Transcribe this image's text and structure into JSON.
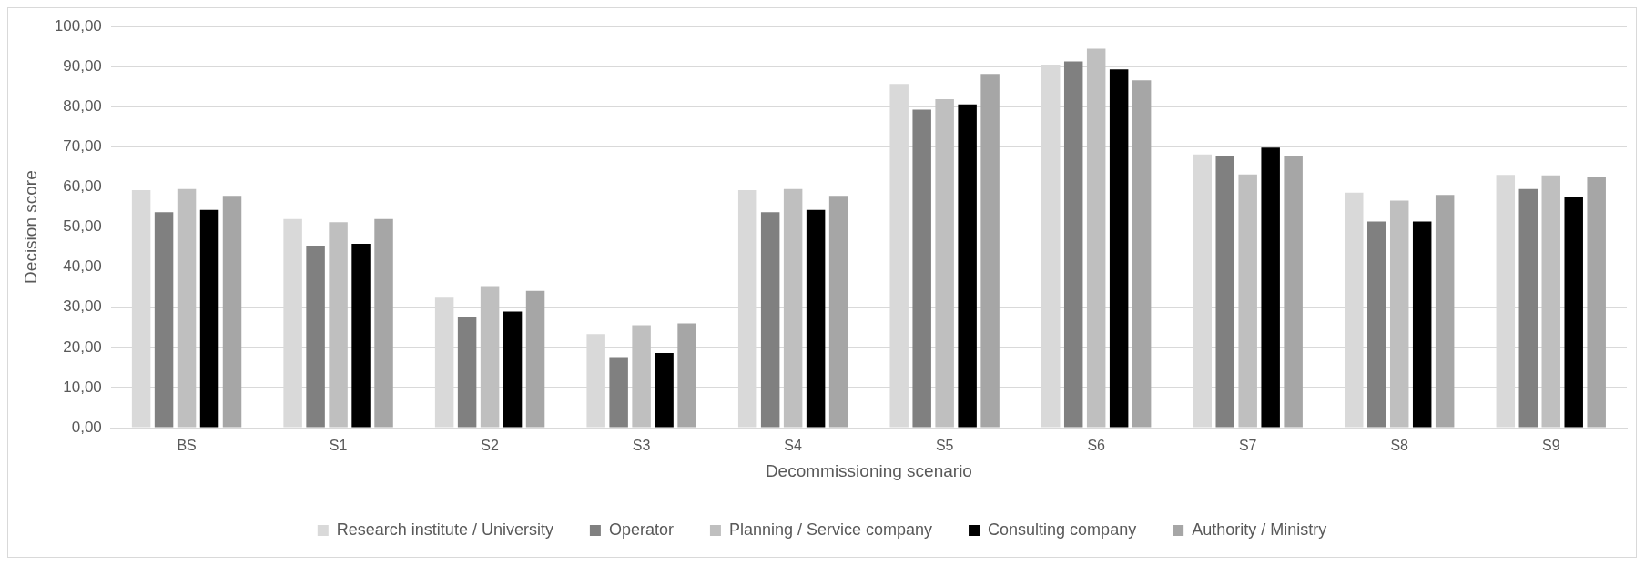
{
  "chart_data": {
    "type": "bar",
    "xlabel": "Decommissioning scenario",
    "ylabel": "Decision score",
    "categories": [
      "BS",
      "S1",
      "S2",
      "S3",
      "S4",
      "S5",
      "S6",
      "S7",
      "S8",
      "S9"
    ],
    "series": [
      {
        "name": "Research institute / University",
        "color": "#d9d9d9",
        "values": [
          59.2,
          52.0,
          32.6,
          23.3,
          59.2,
          85.7,
          90.5,
          68.1,
          58.6,
          63.0
        ]
      },
      {
        "name": "Operator",
        "color": "#808080",
        "values": [
          53.7,
          45.4,
          27.7,
          17.6,
          53.7,
          79.3,
          91.3,
          67.8,
          51.4,
          59.5
        ]
      },
      {
        "name": "Planning / Service company",
        "color": "#bfbfbf",
        "values": [
          59.5,
          51.2,
          35.3,
          25.5,
          59.5,
          81.9,
          94.5,
          63.1,
          56.6,
          62.9
        ]
      },
      {
        "name": "Consulting company",
        "color": "#000000",
        "values": [
          54.3,
          45.8,
          28.9,
          18.6,
          54.3,
          80.6,
          89.3,
          69.8,
          51.4,
          57.6
        ]
      },
      {
        "name": "Authority / Ministry",
        "color": "#a6a6a6",
        "values": [
          57.8,
          52.0,
          34.1,
          26.0,
          57.8,
          88.2,
          86.6,
          67.8,
          58.0,
          62.5
        ]
      }
    ],
    "ylim": [
      0,
      100
    ],
    "yticks": [
      {
        "value": 0,
        "label": "0,00"
      },
      {
        "value": 10,
        "label": "10,00"
      },
      {
        "value": 20,
        "label": "20,00"
      },
      {
        "value": 30,
        "label": "30,00"
      },
      {
        "value": 40,
        "label": "40,00"
      },
      {
        "value": 50,
        "label": "50,00"
      },
      {
        "value": 60,
        "label": "60,00"
      },
      {
        "value": 70,
        "label": "70,00"
      },
      {
        "value": 80,
        "label": "80,00"
      },
      {
        "value": 90,
        "label": "90,00"
      },
      {
        "value": 100,
        "label": "100,00"
      }
    ],
    "grid": "y",
    "legend": "bottom"
  }
}
